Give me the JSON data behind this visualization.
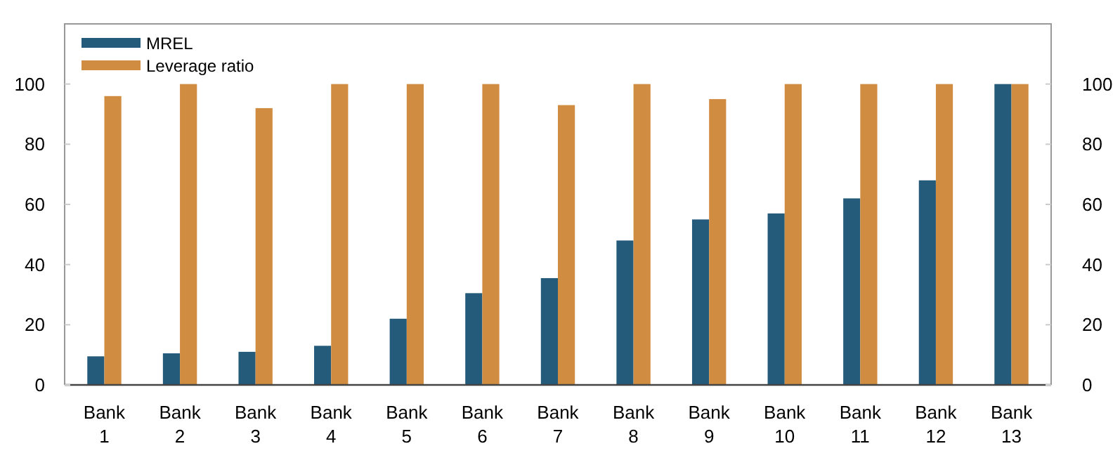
{
  "chart_data": {
    "type": "bar",
    "categories": [
      "Bank 1",
      "Bank 2",
      "Bank 3",
      "Bank 4",
      "Bank 5",
      "Bank 6",
      "Bank 7",
      "Bank 8",
      "Bank 9",
      "Bank 10",
      "Bank 11",
      "Bank 12",
      "Bank 13"
    ],
    "series": [
      {
        "name": "MREL",
        "color": "#245a7a",
        "values": [
          9.5,
          10.5,
          11,
          13,
          22,
          30.5,
          35.5,
          48,
          55,
          57,
          62,
          68,
          100
        ]
      },
      {
        "name": "Leverage ratio",
        "color": "#d08c40",
        "values": [
          96,
          100,
          92,
          100,
          100,
          100,
          93,
          100,
          95,
          100,
          100,
          100,
          100
        ]
      }
    ],
    "ylim": [
      0,
      120
    ],
    "yticks": [
      0,
      20,
      40,
      60,
      80,
      100
    ],
    "y2lim": [
      0,
      120
    ],
    "y2ticks": [
      0,
      20,
      40,
      60,
      80,
      100
    ],
    "grid": false,
    "legend": "top left"
  }
}
